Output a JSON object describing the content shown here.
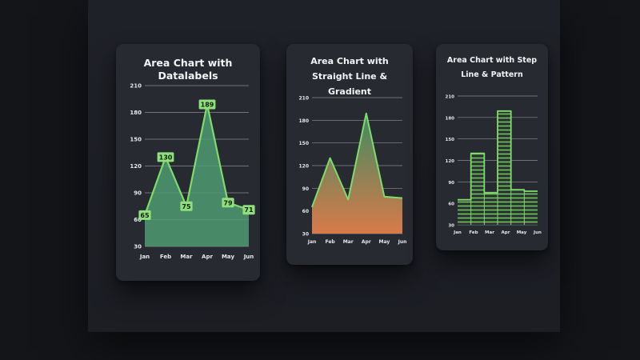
{
  "colors": {
    "line": "#7fdc6b",
    "area_fill": "#4f9a72",
    "label_bg": "#8fe07b",
    "grad_top": "#3f8a62",
    "grad_bottom": "#d97a4a",
    "grid": "#8a8d94"
  },
  "chart_data": [
    {
      "type": "area",
      "title": "Area Chart with Datalabels",
      "categories": [
        "Jan",
        "Feb",
        "Mar",
        "Apr",
        "May",
        "Jun"
      ],
      "series": [
        {
          "values": [
            65,
            130,
            75,
            189,
            79,
            71
          ]
        }
      ],
      "ylim": [
        30,
        210
      ],
      "yticks": [
        "30",
        "60",
        "90",
        "120",
        "150",
        "180",
        "210"
      ],
      "datalabels": true,
      "grid": true
    },
    {
      "type": "area",
      "title": "Area Chart with Straight Line & Gradient",
      "categories": [
        "Jan",
        "Feb",
        "Mar",
        "Apr",
        "May",
        "Jun"
      ],
      "series": [
        {
          "values": [
            65,
            130,
            75,
            189,
            79,
            77
          ]
        }
      ],
      "ylim": [
        30,
        210
      ],
      "yticks": [
        "30",
        "60",
        "90",
        "120",
        "150",
        "180",
        "210"
      ],
      "fill": "gradient",
      "grid": true
    },
    {
      "type": "area",
      "title": "Area Chart with Step Line & Pattern",
      "categories": [
        "Jan",
        "Feb",
        "Mar",
        "Apr",
        "May",
        "Jun"
      ],
      "series": [
        {
          "values": [
            65,
            130,
            75,
            189,
            79,
            77
          ]
        }
      ],
      "ylim": [
        30,
        210
      ],
      "yticks": [
        "30",
        "60",
        "90",
        "120",
        "150",
        "180",
        "210"
      ],
      "curve": "step",
      "fill": "pattern",
      "grid": true
    }
  ]
}
